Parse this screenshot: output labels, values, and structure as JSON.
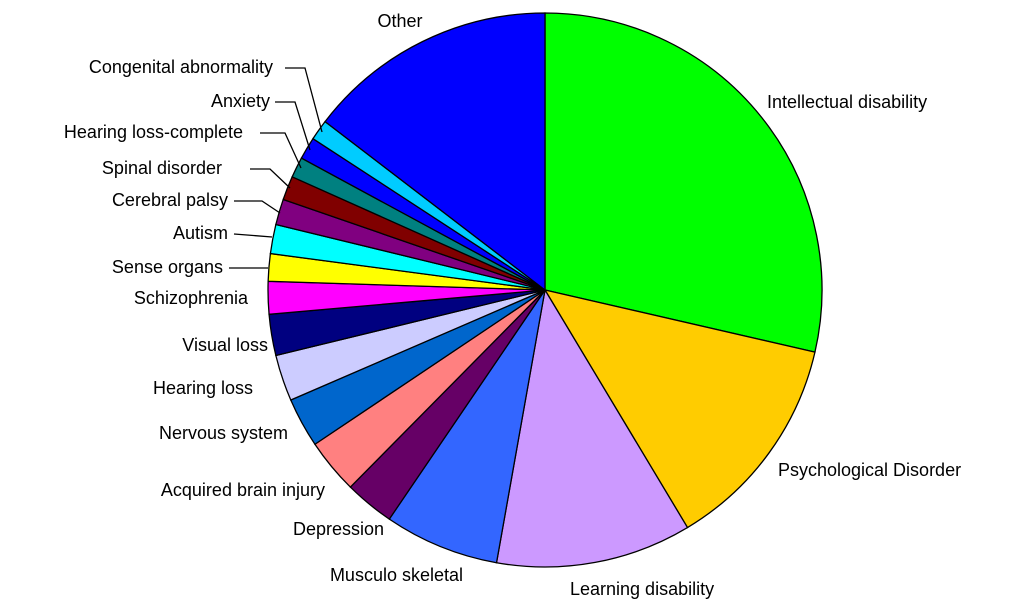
{
  "chart_data": {
    "type": "pie",
    "categories": [
      "Intellectual disability",
      "Psychological Disorder",
      "Learning disability",
      "Musculo skeletal",
      "Depression",
      "Acquired brain injury",
      "Nervous system",
      "Hearing loss",
      "Visual loss",
      "Schizophrenia",
      "Sense organs",
      "Autism",
      "Cerebral palsy",
      "Spinal disorder",
      "Hearing loss-complete",
      "Anxiety",
      "Congenital abnormality",
      "Other"
    ],
    "values": [
      28.6,
      12.8,
      11.4,
      6.7,
      2.9,
      3.2,
      2.9,
      2.7,
      2.4,
      1.9,
      1.6,
      1.7,
      1.5,
      1.4,
      1.2,
      1.3,
      1.2,
      14.6
    ],
    "colors": [
      "#00ff00",
      "#ffcc00",
      "#cc99ff",
      "#3366ff",
      "#660066",
      "#ff8080",
      "#0066cc",
      "#ccccff",
      "#000080",
      "#ff00ff",
      "#ffff00",
      "#00ffff",
      "#800080",
      "#800000",
      "#008080",
      "#0000ff",
      "#00ccff",
      "#0000ff"
    ]
  }
}
